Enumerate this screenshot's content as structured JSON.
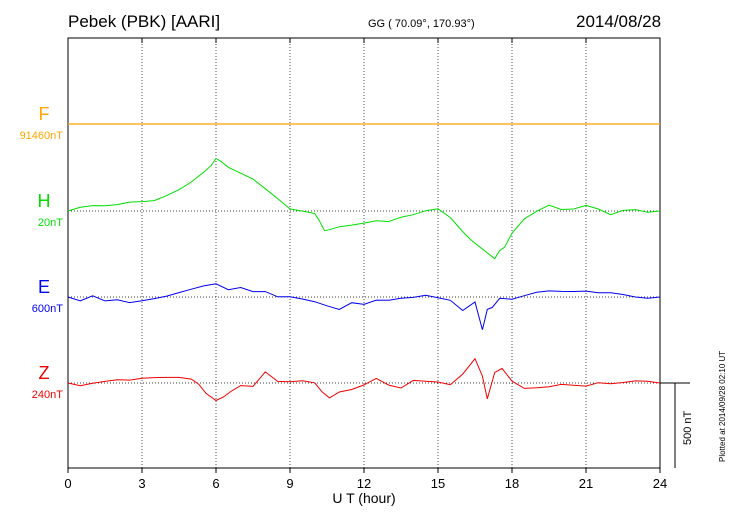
{
  "header": {
    "station": "Pebek (PBK)  [AARI]",
    "coords": "GG ( 70.09°, 170.93°)",
    "date": "2014/08/28"
  },
  "side_note": "Plotted at 2014/09/28 02:10 UT",
  "scale_label": "500 nT",
  "chart_data": {
    "type": "line",
    "title": "Pebek (PBK)  [AARI]",
    "xlabel": "U T (hour)",
    "ylabel": "",
    "xlim": [
      0,
      24
    ],
    "x_ticks": [
      "0",
      "3",
      "6",
      "9",
      "12",
      "15",
      "18",
      "21",
      "24"
    ],
    "grid": true,
    "scale_bar_nT": 500,
    "series": [
      {
        "name": "F",
        "baseline_label": "91460nT",
        "color": "#ffa500",
        "x": [
          0,
          24
        ],
        "y": [
          0,
          0
        ]
      },
      {
        "name": "H",
        "baseline_label": "20nT",
        "color": "#00dd00",
        "x": [
          0,
          0.5,
          1,
          1.5,
          2,
          2.5,
          3,
          3.5,
          4,
          4.5,
          5,
          5.5,
          5.8,
          6,
          6.2,
          6.5,
          7,
          7.5,
          8,
          8.5,
          9,
          9.5,
          10,
          10.2,
          10.4,
          10.6,
          11,
          11.5,
          12,
          12.5,
          13,
          13.5,
          14,
          14.5,
          15,
          15.5,
          16,
          16.3,
          16.6,
          17,
          17.3,
          17.5,
          17.7,
          18,
          18.5,
          19,
          19.5,
          20,
          20.5,
          21,
          21.5,
          22,
          22.5,
          23,
          23.5,
          24
        ],
        "y": [
          0,
          20,
          25,
          20,
          25,
          40,
          45,
          55,
          90,
          130,
          180,
          240,
          280,
          320,
          300,
          260,
          220,
          180,
          120,
          60,
          0,
          -10,
          -20,
          -60,
          -110,
          -100,
          -80,
          -70,
          -60,
          -50,
          -60,
          -40,
          -30,
          -10,
          0,
          -50,
          -130,
          -170,
          -200,
          -240,
          -270,
          -220,
          -200,
          -120,
          -40,
          0,
          30,
          0,
          0,
          20,
          0,
          -30,
          0,
          10,
          0,
          0
        ]
      },
      {
        "name": "E",
        "baseline_label": "600nT",
        "color": "#0000ee",
        "x": [
          0,
          0.5,
          1,
          1.5,
          2,
          2.5,
          3,
          3.5,
          4,
          4.5,
          5,
          5.5,
          6,
          6.5,
          7,
          7.5,
          8,
          8.5,
          9,
          9.5,
          10,
          10.5,
          11,
          11.5,
          12,
          12.5,
          13,
          13.5,
          14,
          14.5,
          15,
          15.5,
          16,
          16.5,
          16.8,
          17,
          17.2,
          17.5,
          18,
          18.5,
          19,
          19.5,
          20,
          20.5,
          21,
          21.5,
          22,
          22.5,
          23,
          23.5,
          24
        ],
        "y": [
          0,
          -25,
          10,
          -15,
          -5,
          -20,
          -10,
          0,
          10,
          25,
          40,
          55,
          65,
          30,
          45,
          25,
          30,
          5,
          10,
          0,
          -15,
          -40,
          -65,
          -30,
          -45,
          -25,
          -30,
          -20,
          -15,
          0,
          -10,
          -20,
          -75,
          -20,
          -180,
          -60,
          -50,
          0,
          -10,
          5,
          20,
          25,
          20,
          20,
          25,
          20,
          25,
          20,
          10,
          5,
          0
        ]
      },
      {
        "name": "Z",
        "baseline_label": "240nT",
        "color": "#ee0000",
        "x": [
          0,
          0.5,
          1,
          1.5,
          2,
          2.5,
          3,
          3.5,
          4,
          4.5,
          5,
          5.3,
          5.6,
          6,
          6.3,
          6.6,
          7,
          7.5,
          8,
          8.5,
          9,
          9.5,
          10,
          10.3,
          10.6,
          11,
          11.5,
          12,
          12.5,
          13,
          13.5,
          14,
          14.5,
          15,
          15.5,
          16,
          16.5,
          16.8,
          17,
          17.3,
          17.6,
          18,
          18.5,
          19,
          19.5,
          20,
          20.5,
          21,
          21.5,
          22,
          22.5,
          23,
          23.5,
          24
        ],
        "y": [
          0,
          -10,
          0,
          5,
          10,
          5,
          15,
          20,
          25,
          30,
          25,
          0,
          -50,
          -90,
          -70,
          -40,
          -10,
          -20,
          60,
          0,
          -5,
          0,
          -10,
          -60,
          -90,
          -50,
          -30,
          0,
          40,
          0,
          -20,
          20,
          10,
          0,
          -20,
          40,
          130,
          30,
          -100,
          60,
          90,
          20,
          -20,
          -15,
          -10,
          0,
          -10,
          -20,
          -5,
          -15,
          -10,
          0,
          0,
          0
        ]
      }
    ]
  }
}
